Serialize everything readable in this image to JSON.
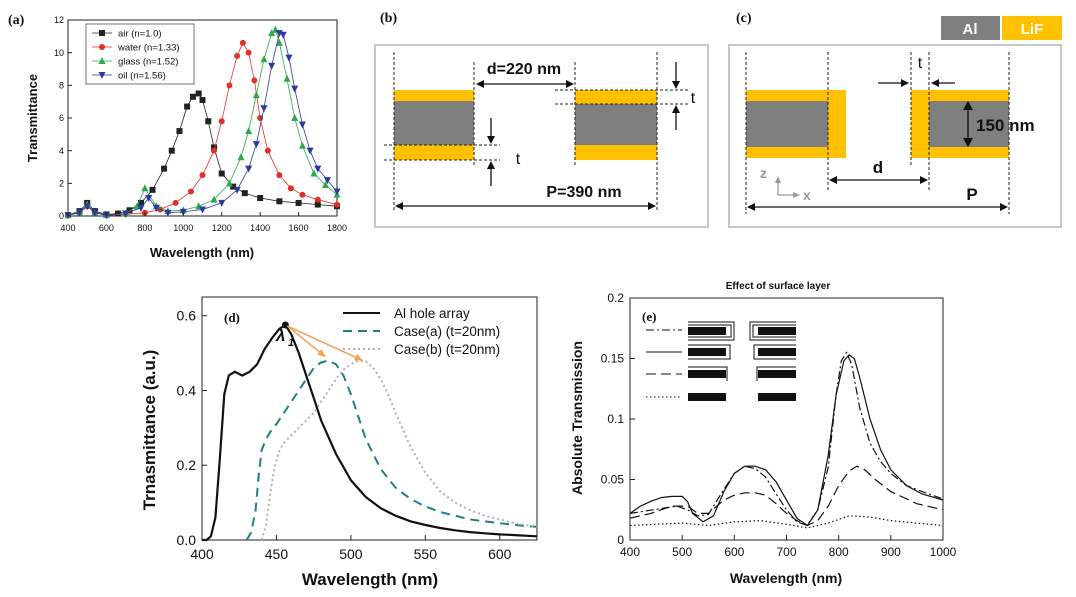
{
  "chart_data": [
    {
      "panel": "(a)",
      "type": "line",
      "xlabel": "Wavelength (nm)",
      "ylabel": "Transmittance",
      "xlim": [
        400,
        1800
      ],
      "ylim": [
        0,
        12
      ],
      "xticks": [
        "400",
        "600",
        "800",
        "1000",
        "1200",
        "1400",
        "1600",
        "1800"
      ],
      "yticks": [
        "0",
        "2",
        "4",
        "6",
        "8",
        "10",
        "12"
      ],
      "series": [
        {
          "name": "air (n=1.0)",
          "color": "#222222",
          "marker": "square",
          "x": [
            400,
            460,
            500,
            540,
            600,
            660,
            720,
            780,
            840,
            900,
            940,
            980,
            1020,
            1050,
            1080,
            1100,
            1130,
            1160,
            1200,
            1260,
            1320,
            1400,
            1500,
            1600,
            1700,
            1800
          ],
          "y": [
            0.05,
            0.3,
            0.8,
            0.3,
            0.1,
            0.15,
            0.35,
            0.8,
            1.6,
            2.9,
            4.0,
            5.2,
            6.7,
            7.3,
            7.5,
            7.1,
            5.8,
            4.2,
            2.6,
            1.8,
            1.4,
            1.1,
            0.9,
            0.8,
            0.7,
            0.6
          ]
        },
        {
          "name": "water (n=1.33)",
          "color": "#e0302a",
          "marker": "circle",
          "x": [
            400,
            460,
            500,
            540,
            600,
            700,
            800,
            880,
            960,
            1040,
            1100,
            1160,
            1200,
            1240,
            1280,
            1310,
            1340,
            1370,
            1400,
            1440,
            1500,
            1560,
            1620,
            1700,
            1800
          ],
          "y": [
            0.05,
            0.2,
            0.6,
            0.2,
            0.05,
            0.1,
            0.2,
            0.4,
            0.8,
            1.5,
            2.5,
            4.0,
            5.8,
            8.0,
            9.8,
            10.6,
            10.0,
            8.3,
            6.0,
            4.0,
            2.5,
            1.7,
            1.3,
            1.0,
            0.7
          ]
        },
        {
          "name": "glass (n=1.52)",
          "color": "#2eaa4a",
          "marker": "triangle-up",
          "x": [
            400,
            460,
            500,
            540,
            600,
            700,
            760,
            800,
            860,
            920,
            1000,
            1080,
            1160,
            1240,
            1300,
            1340,
            1380,
            1420,
            1460,
            1480,
            1500,
            1540,
            1580,
            1620,
            1680,
            1740,
            1800
          ],
          "y": [
            0.05,
            0.2,
            0.7,
            0.2,
            0.05,
            0.15,
            0.6,
            1.7,
            0.6,
            0.3,
            0.35,
            0.6,
            1.0,
            2.0,
            3.6,
            5.2,
            7.4,
            9.6,
            11.2,
            11.4,
            10.6,
            8.4,
            6.0,
            4.3,
            2.6,
            1.9,
            1.3
          ]
        },
        {
          "name": "oil (n=1.56)",
          "color": "#2b3aa0",
          "marker": "triangle-down",
          "x": [
            400,
            460,
            500,
            540,
            600,
            700,
            780,
            820,
            860,
            920,
            1000,
            1100,
            1200,
            1280,
            1340,
            1380,
            1420,
            1460,
            1500,
            1520,
            1550,
            1580,
            1620,
            1660,
            1700,
            1750,
            1800
          ],
          "y": [
            0.05,
            0.2,
            0.6,
            0.2,
            0.05,
            0.15,
            0.5,
            1.1,
            0.5,
            0.2,
            0.25,
            0.4,
            0.8,
            1.6,
            2.9,
            4.4,
            6.6,
            9.2,
            11.2,
            11.1,
            9.7,
            7.8,
            5.6,
            4.0,
            2.9,
            2.2,
            1.5
          ]
        }
      ]
    },
    {
      "panel": "(d)",
      "type": "line",
      "xlabel": "Wavelength (nm)",
      "ylabel": "Trnasmittance (a.u.)",
      "xlim": [
        400,
        625
      ],
      "ylim": [
        0,
        0.65
      ],
      "xticks": [
        "400",
        "450",
        "500",
        "550",
        "600"
      ],
      "yticks": [
        "0.0",
        "0.2",
        "0.4",
        "0.6"
      ],
      "peak_label": "λ",
      "peak_sub": "1",
      "series": [
        {
          "name": "Al hole array",
          "color": "#111111",
          "dash": "",
          "x": [
            400,
            403,
            406,
            409,
            412,
            415,
            418,
            422,
            427,
            432,
            437,
            442,
            447,
            452,
            456,
            460,
            465,
            470,
            475,
            480,
            490,
            500,
            510,
            520,
            530,
            540,
            550,
            560,
            570,
            580,
            590,
            600,
            610,
            625
          ],
          "y": [
            0,
            0,
            0.01,
            0.06,
            0.22,
            0.39,
            0.44,
            0.45,
            0.44,
            0.45,
            0.47,
            0.51,
            0.54,
            0.565,
            0.575,
            0.55,
            0.5,
            0.44,
            0.38,
            0.32,
            0.23,
            0.16,
            0.115,
            0.085,
            0.065,
            0.05,
            0.04,
            0.032,
            0.026,
            0.021,
            0.018,
            0.015,
            0.013,
            0.01
          ]
        },
        {
          "name": "Case(a) (t=20nm)",
          "color": "#1e7f86",
          "dash": "9,6",
          "x": [
            430,
            433,
            436,
            438,
            440,
            443,
            446,
            450,
            455,
            460,
            465,
            470,
            475,
            480,
            485,
            490,
            495,
            500,
            505,
            510,
            520,
            530,
            540,
            550,
            560,
            570,
            580,
            590,
            600,
            610,
            625
          ],
          "y": [
            0,
            0.02,
            0.08,
            0.17,
            0.24,
            0.27,
            0.29,
            0.31,
            0.34,
            0.37,
            0.4,
            0.43,
            0.46,
            0.475,
            0.48,
            0.47,
            0.44,
            0.39,
            0.33,
            0.27,
            0.19,
            0.14,
            0.11,
            0.09,
            0.075,
            0.065,
            0.055,
            0.05,
            0.045,
            0.04,
            0.035
          ]
        },
        {
          "name": "Case(b) (t=20nm)",
          "color": "#b0b0b0",
          "dash": "2,3",
          "x": [
            440,
            443,
            446,
            449,
            452,
            455,
            460,
            465,
            470,
            475,
            480,
            485,
            490,
            495,
            500,
            505,
            510,
            515,
            520,
            525,
            530,
            540,
            550,
            560,
            570,
            580,
            590,
            600,
            610,
            625
          ],
          "y": [
            0,
            0.04,
            0.13,
            0.2,
            0.24,
            0.26,
            0.28,
            0.3,
            0.32,
            0.34,
            0.37,
            0.4,
            0.43,
            0.455,
            0.47,
            0.48,
            0.478,
            0.46,
            0.43,
            0.39,
            0.34,
            0.25,
            0.18,
            0.13,
            0.1,
            0.08,
            0.065,
            0.055,
            0.045,
            0.035
          ]
        }
      ]
    },
    {
      "panel": "(e)",
      "type": "line",
      "title": "Effect  of surface layer",
      "xlabel": "Wavelength (nm)",
      "ylabel": "Absolute Transmission",
      "xlim": [
        400,
        1000
      ],
      "ylim": [
        0,
        0.2
      ],
      "xticks": [
        "400",
        "500",
        "600",
        "700",
        "800",
        "900",
        "1000"
      ],
      "yticks": [
        "0",
        "0.05",
        "0.1",
        "0.15",
        "0.2"
      ],
      "series": [
        {
          "name": "dash-dot",
          "color": "#111111",
          "dash": "8,3,2,3",
          "x": [
            400,
            430,
            460,
            490,
            510,
            530,
            550,
            570,
            600,
            620,
            640,
            660,
            680,
            700,
            720,
            740,
            760,
            780,
            795,
            805,
            815,
            825,
            840,
            860,
            880,
            900,
            930,
            960,
            1000
          ],
          "y": [
            0.022,
            0.024,
            0.026,
            0.028,
            0.025,
            0.02,
            0.021,
            0.035,
            0.055,
            0.061,
            0.059,
            0.052,
            0.038,
            0.025,
            0.015,
            0.012,
            0.025,
            0.06,
            0.12,
            0.148,
            0.155,
            0.145,
            0.11,
            0.08,
            0.065,
            0.055,
            0.045,
            0.04,
            0.034
          ]
        },
        {
          "name": "solid",
          "color": "#111111",
          "dash": "",
          "x": [
            400,
            420,
            440,
            460,
            480,
            500,
            510,
            520,
            540,
            560,
            580,
            600,
            620,
            640,
            660,
            680,
            700,
            720,
            740,
            760,
            780,
            795,
            810,
            820,
            830,
            840,
            860,
            880,
            900,
            930,
            960,
            1000
          ],
          "y": [
            0.022,
            0.028,
            0.032,
            0.035,
            0.036,
            0.036,
            0.032,
            0.022,
            0.015,
            0.02,
            0.04,
            0.055,
            0.061,
            0.061,
            0.058,
            0.048,
            0.033,
            0.018,
            0.012,
            0.025,
            0.07,
            0.12,
            0.148,
            0.153,
            0.15,
            0.135,
            0.1,
            0.075,
            0.058,
            0.045,
            0.038,
            0.033
          ]
        },
        {
          "name": "long-dash",
          "color": "#111111",
          "dash": "10,5",
          "x": [
            400,
            440,
            480,
            510,
            530,
            550,
            580,
            600,
            620,
            640,
            660,
            680,
            700,
            720,
            740,
            760,
            780,
            800,
            820,
            835,
            850,
            870,
            900,
            950,
            1000
          ],
          "y": [
            0.018,
            0.022,
            0.028,
            0.028,
            0.022,
            0.022,
            0.033,
            0.037,
            0.039,
            0.039,
            0.037,
            0.03,
            0.022,
            0.016,
            0.012,
            0.016,
            0.028,
            0.045,
            0.057,
            0.061,
            0.058,
            0.05,
            0.04,
            0.03,
            0.025
          ]
        },
        {
          "name": "dotted",
          "color": "#111111",
          "dash": "1.5,2.5",
          "x": [
            400,
            450,
            500,
            550,
            600,
            650,
            700,
            740,
            780,
            820,
            860,
            900,
            950,
            1000
          ],
          "y": [
            0.012,
            0.013,
            0.014,
            0.012,
            0.015,
            0.016,
            0.013,
            0.01,
            0.014,
            0.02,
            0.019,
            0.016,
            0.014,
            0.012
          ]
        }
      ]
    }
  ],
  "panels": {
    "a_label": "(a)",
    "b_label": "(b)",
    "c_label": "(c)",
    "d_label": "(d)",
    "e_label": "(e)",
    "b_d": "d=220 nm",
    "b_t1": "t",
    "b_t2": "t",
    "b_p": "P=390 nm",
    "c_t": "t",
    "c_150": "150 nm",
    "c_d": "d",
    "c_p": "P",
    "c_z": "z",
    "c_x": "x",
    "legend_al": "Al",
    "legend_lif": "LiF"
  },
  "colors": {
    "al": "#7f7f7f",
    "lif": "#ffc000",
    "arrow": "#f0a050"
  }
}
